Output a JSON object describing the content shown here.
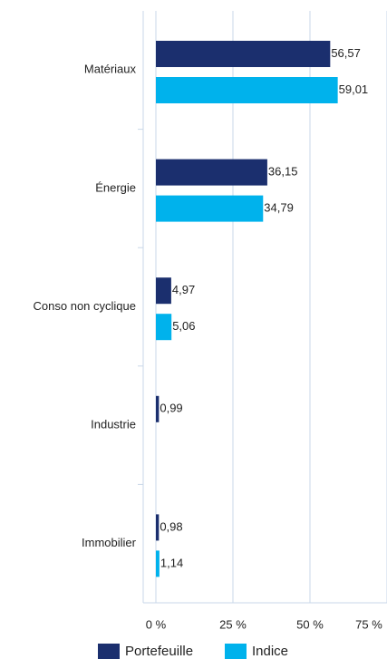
{
  "chart_data": {
    "type": "bar",
    "orientation": "horizontal",
    "categories": [
      "Matériaux",
      "Énergie",
      "Conso non cyclique",
      "Industrie",
      "Immobilier"
    ],
    "series": [
      {
        "name": "Portefeuille",
        "color": "#1b2f6e",
        "values": [
          56.57,
          36.15,
          4.97,
          0.99,
          0.98
        ],
        "value_labels": [
          "56,57",
          "36,15",
          "4,97",
          "0,99",
          "0,98"
        ]
      },
      {
        "name": "Indice",
        "color": "#00b2ec",
        "values": [
          59.01,
          34.79,
          5.06,
          null,
          1.14
        ],
        "value_labels": [
          "59,01",
          "34,79",
          "5,06",
          null,
          "1,14"
        ]
      }
    ],
    "xlim": [
      0,
      75
    ],
    "xticks": [
      {
        "value": 0,
        "label": "0 %"
      },
      {
        "value": 25,
        "label": "25 %"
      },
      {
        "value": 50,
        "label": "50 %"
      },
      {
        "value": 75,
        "label": "75 %"
      }
    ],
    "grid": true,
    "legend": "bottom"
  }
}
